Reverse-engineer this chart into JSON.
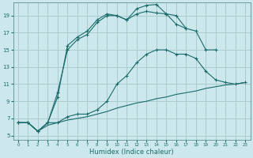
{
  "xlabel": "Humidex (Indice chaleur)",
  "bg_color": "#cce8ec",
  "grid_color": "#aacccc",
  "line_color": "#1a6b6b",
  "xlim": [
    -0.5,
    23.5
  ],
  "ylim": [
    4.5,
    20.5
  ],
  "yticks": [
    5,
    7,
    9,
    11,
    13,
    15,
    17,
    19
  ],
  "xticks": [
    0,
    1,
    2,
    3,
    4,
    5,
    6,
    7,
    8,
    9,
    10,
    11,
    12,
    13,
    14,
    15,
    16,
    17,
    18,
    19,
    20,
    21,
    22,
    23
  ],
  "series": [
    {
      "x": [
        0,
        1,
        2,
        3,
        4,
        5,
        6,
        7,
        8,
        9,
        10,
        11,
        12,
        13,
        14,
        15,
        16,
        17
      ],
      "y": [
        6.5,
        6.5,
        5.5,
        6.5,
        9.5,
        15.5,
        16.5,
        17.2,
        18.5,
        19.2,
        19.0,
        18.5,
        19.8,
        20.2,
        20.3,
        19.2,
        19.0,
        17.5
      ],
      "marker": true
    },
    {
      "x": [
        0,
        1,
        2,
        3,
        4,
        5,
        6,
        7,
        8,
        9,
        10,
        11,
        12,
        13,
        14,
        15,
        16,
        17,
        18,
        19,
        20
      ],
      "y": [
        6.5,
        6.5,
        5.5,
        6.5,
        10.0,
        15.0,
        16.2,
        16.8,
        18.2,
        19.0,
        19.0,
        18.5,
        19.2,
        19.5,
        19.3,
        19.2,
        18.0,
        17.5,
        17.2,
        15.0,
        15.0
      ],
      "marker": true
    },
    {
      "x": [
        0,
        1,
        2,
        3,
        4,
        5,
        6,
        7,
        8,
        9,
        10,
        11,
        12,
        13,
        14,
        15,
        16,
        17,
        18,
        19,
        20,
        21,
        22,
        23
      ],
      "y": [
        6.5,
        6.5,
        5.5,
        6.5,
        6.5,
        7.2,
        7.5,
        7.5,
        8.0,
        9.0,
        11.0,
        12.0,
        13.5,
        14.5,
        15.0,
        15.0,
        14.5,
        14.5,
        14.0,
        12.5,
        11.5,
        11.2,
        11.0,
        11.2
      ],
      "marker": true
    },
    {
      "x": [
        0,
        1,
        2,
        3,
        4,
        5,
        6,
        7,
        8,
        9,
        10,
        11,
        12,
        13,
        14,
        15,
        16,
        17,
        18,
        19,
        20,
        21,
        22,
        23
      ],
      "y": [
        6.5,
        6.5,
        5.5,
        6.2,
        6.5,
        6.8,
        7.0,
        7.2,
        7.5,
        7.8,
        8.2,
        8.5,
        8.8,
        9.0,
        9.3,
        9.5,
        9.8,
        10.0,
        10.2,
        10.5,
        10.7,
        10.9,
        11.0,
        11.2
      ],
      "marker": false
    }
  ]
}
